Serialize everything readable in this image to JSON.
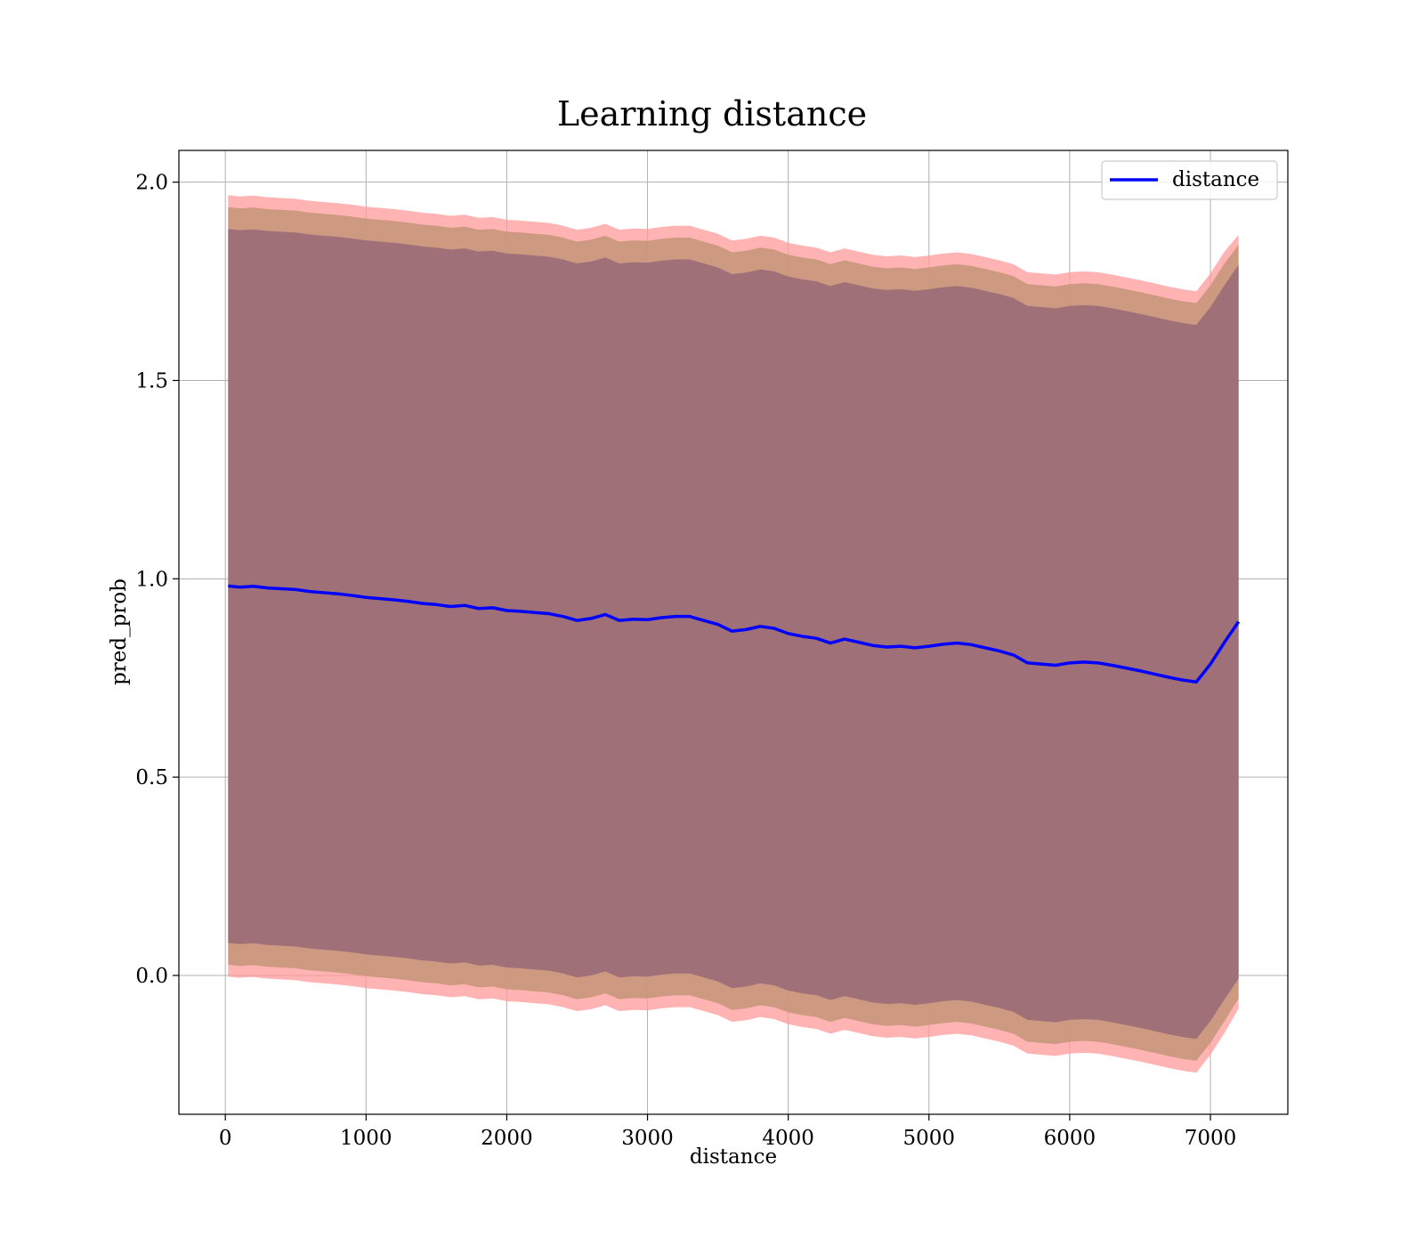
{
  "chart_data": {
    "type": "line",
    "title": "Learning distance",
    "xlabel": "distance",
    "ylabel": "pred_prob",
    "xlim": [
      -330,
      7550
    ],
    "ylim": [
      -0.35,
      2.08
    ],
    "xticks": [
      0,
      1000,
      2000,
      3000,
      4000,
      5000,
      6000,
      7000
    ],
    "xtick_labels": [
      "0",
      "1000",
      "2000",
      "3000",
      "4000",
      "5000",
      "6000",
      "7000"
    ],
    "yticks": [
      0.0,
      0.5,
      1.0,
      1.5,
      2.0
    ],
    "ytick_labels": [
      "0.0",
      "0.5",
      "1.0",
      "1.5",
      "2.0"
    ],
    "grid": true,
    "legend": {
      "placement": "top-right",
      "entries": [
        "distance"
      ]
    },
    "colors": {
      "line": "#0000ff",
      "band_outer": "#ff9999",
      "band_middle": "#c8967a",
      "band_inner": "#a07078",
      "grid": "#b0b0b0"
    },
    "series": [
      {
        "name": "distance",
        "x": [
          20,
          100,
          200,
          300,
          400,
          500,
          600,
          700,
          800,
          900,
          1000,
          1100,
          1200,
          1300,
          1400,
          1500,
          1600,
          1700,
          1800,
          1900,
          2000,
          2100,
          2200,
          2300,
          2400,
          2500,
          2600,
          2700,
          2800,
          2900,
          3000,
          3100,
          3200,
          3300,
          3400,
          3500,
          3600,
          3700,
          3800,
          3900,
          4000,
          4100,
          4200,
          4300,
          4400,
          4500,
          4600,
          4700,
          4800,
          4900,
          5000,
          5100,
          5200,
          5300,
          5400,
          5500,
          5600,
          5700,
          5800,
          5900,
          6000,
          6100,
          6200,
          6300,
          6400,
          6500,
          6600,
          6700,
          6800,
          6900,
          7000,
          7100,
          7200
        ],
        "y": [
          0.982,
          0.979,
          0.981,
          0.977,
          0.975,
          0.973,
          0.968,
          0.965,
          0.962,
          0.958,
          0.953,
          0.95,
          0.947,
          0.943,
          0.938,
          0.935,
          0.93,
          0.933,
          0.925,
          0.927,
          0.92,
          0.918,
          0.915,
          0.912,
          0.905,
          0.895,
          0.9,
          0.91,
          0.895,
          0.898,
          0.897,
          0.902,
          0.905,
          0.905,
          0.895,
          0.885,
          0.868,
          0.872,
          0.88,
          0.875,
          0.862,
          0.855,
          0.85,
          0.838,
          0.848,
          0.84,
          0.832,
          0.828,
          0.83,
          0.826,
          0.83,
          0.835,
          0.838,
          0.834,
          0.826,
          0.818,
          0.808,
          0.788,
          0.785,
          0.782,
          0.788,
          0.79,
          0.788,
          0.782,
          0.775,
          0.768,
          0.76,
          0.752,
          0.745,
          0.74,
          0.785,
          0.84,
          0.892
        ]
      }
    ],
    "bands": [
      {
        "name": "outer",
        "half_width": [
          0.985,
          0.985,
          0.985,
          0.985,
          0.985,
          0.985,
          0.985,
          0.985,
          0.985,
          0.985,
          0.985,
          0.985,
          0.985,
          0.985,
          0.985,
          0.985,
          0.985,
          0.985,
          0.985,
          0.985,
          0.985,
          0.985,
          0.985,
          0.985,
          0.985,
          0.985,
          0.985,
          0.985,
          0.985,
          0.985,
          0.985,
          0.985,
          0.985,
          0.985,
          0.985,
          0.985,
          0.985,
          0.985,
          0.985,
          0.985,
          0.985,
          0.985,
          0.985,
          0.985,
          0.985,
          0.985,
          0.985,
          0.985,
          0.985,
          0.985,
          0.985,
          0.985,
          0.985,
          0.985,
          0.985,
          0.985,
          0.985,
          0.985,
          0.985,
          0.985,
          0.985,
          0.985,
          0.985,
          0.985,
          0.985,
          0.985,
          0.985,
          0.985,
          0.985,
          0.985,
          0.985,
          0.985,
          0.975
        ]
      },
      {
        "name": "middle",
        "half_width": [
          0.955,
          0.955,
          0.955,
          0.955,
          0.955,
          0.955,
          0.955,
          0.955,
          0.955,
          0.955,
          0.955,
          0.955,
          0.955,
          0.955,
          0.955,
          0.955,
          0.955,
          0.955,
          0.955,
          0.955,
          0.955,
          0.955,
          0.955,
          0.955,
          0.955,
          0.955,
          0.955,
          0.955,
          0.955,
          0.955,
          0.955,
          0.955,
          0.955,
          0.955,
          0.955,
          0.955,
          0.955,
          0.955,
          0.955,
          0.955,
          0.955,
          0.955,
          0.955,
          0.955,
          0.955,
          0.955,
          0.955,
          0.955,
          0.955,
          0.955,
          0.955,
          0.955,
          0.955,
          0.955,
          0.955,
          0.955,
          0.955,
          0.955,
          0.955,
          0.955,
          0.955,
          0.955,
          0.955,
          0.955,
          0.955,
          0.955,
          0.955,
          0.955,
          0.955,
          0.955,
          0.955,
          0.955,
          0.95
        ]
      },
      {
        "name": "inner",
        "half_width": [
          0.9,
          0.9,
          0.9,
          0.9,
          0.9,
          0.9,
          0.9,
          0.9,
          0.9,
          0.9,
          0.9,
          0.9,
          0.9,
          0.9,
          0.9,
          0.9,
          0.9,
          0.9,
          0.9,
          0.9,
          0.9,
          0.9,
          0.9,
          0.9,
          0.9,
          0.9,
          0.9,
          0.9,
          0.9,
          0.9,
          0.9,
          0.9,
          0.9,
          0.9,
          0.9,
          0.9,
          0.9,
          0.9,
          0.9,
          0.9,
          0.9,
          0.9,
          0.9,
          0.9,
          0.9,
          0.9,
          0.9,
          0.9,
          0.9,
          0.9,
          0.9,
          0.9,
          0.9,
          0.9,
          0.9,
          0.9,
          0.9,
          0.9,
          0.9,
          0.9,
          0.9,
          0.9,
          0.9,
          0.9,
          0.9,
          0.9,
          0.9,
          0.9,
          0.9,
          0.9,
          0.9,
          0.9,
          0.9
        ]
      }
    ]
  }
}
